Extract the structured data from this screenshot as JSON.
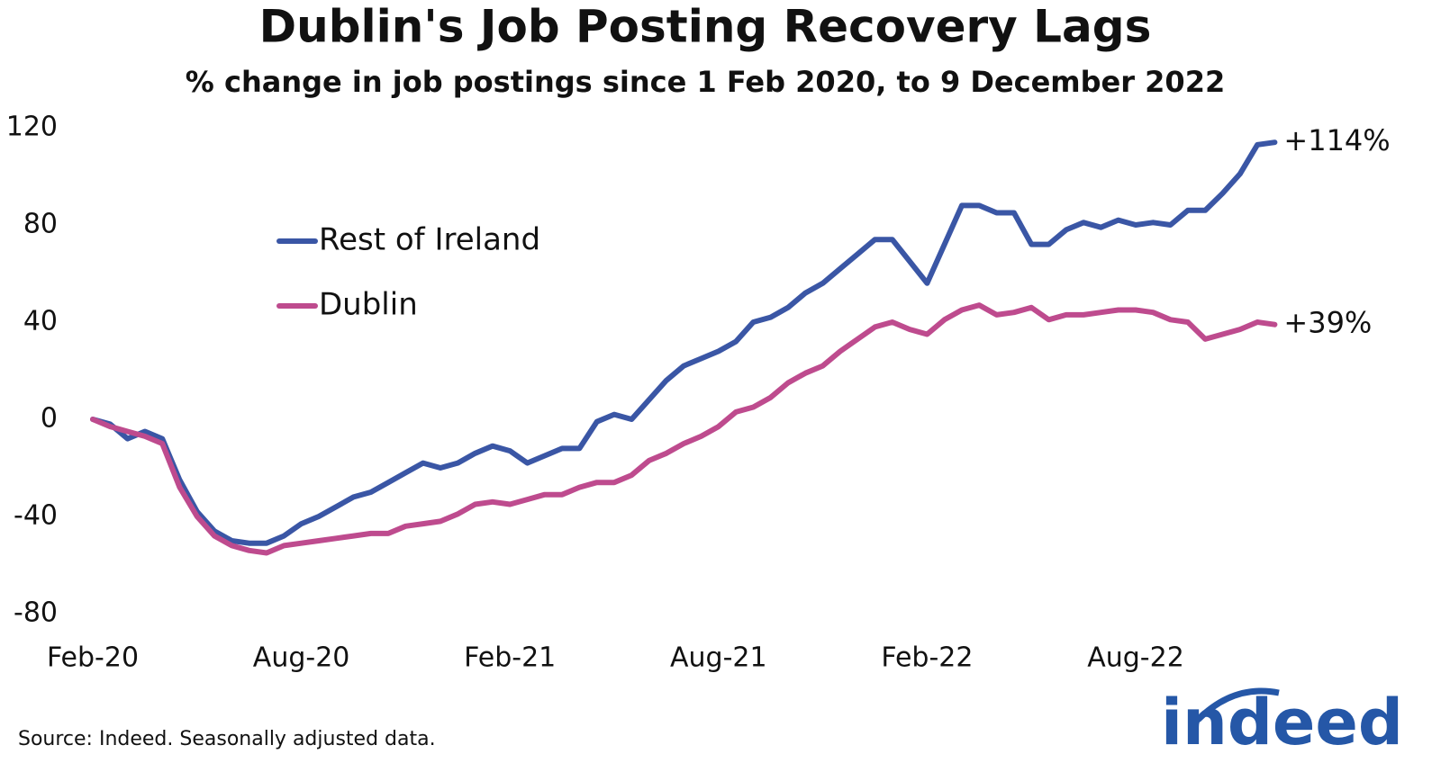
{
  "chart_data": {
    "type": "line",
    "title": "Dublin's Job Posting Recovery Lags",
    "subtitle": "% change in job postings since 1 Feb 2020, to 9 December 2022",
    "source": "Source: Indeed. Seasonally adjusted data.",
    "logo": "indeed",
    "categories": [
      "Feb-20",
      null,
      null,
      null,
      null,
      null,
      null,
      null,
      null,
      null,
      null,
      null,
      "Aug-20",
      null,
      null,
      null,
      null,
      null,
      null,
      null,
      null,
      null,
      null,
      null,
      "Feb-21",
      null,
      null,
      null,
      null,
      null,
      null,
      null,
      null,
      null,
      null,
      null,
      "Aug-21",
      null,
      null,
      null,
      null,
      null,
      null,
      null,
      null,
      null,
      null,
      null,
      "Feb-22",
      null,
      null,
      null,
      null,
      null,
      null,
      null,
      null,
      null,
      null,
      null,
      "Aug-22",
      null,
      null,
      null,
      null,
      null,
      null,
      null,
      null
    ],
    "series": [
      {
        "name": "Rest of Ireland",
        "color": "#3a56a5",
        "end_label": "+114%",
        "values": [
          0,
          -2,
          -8,
          -5,
          -8,
          -25,
          -38,
          -46,
          -50,
          -51,
          -51,
          -48,
          -43,
          -40,
          -36,
          -32,
          -30,
          -26,
          -22,
          -18,
          -20,
          -18,
          -14,
          -11,
          -13,
          -18,
          -15,
          -12,
          -12,
          -1,
          2,
          0,
          8,
          16,
          22,
          25,
          28,
          32,
          40,
          42,
          46,
          52,
          56,
          62,
          68,
          74,
          74,
          65,
          56,
          72,
          88,
          88,
          85,
          85,
          72,
          72,
          78,
          81,
          79,
          82,
          80,
          81,
          80,
          86,
          86,
          93,
          101,
          113,
          114
        ]
      },
      {
        "name": "Dublin",
        "color": "#be4b8e",
        "end_label": "+39%",
        "values": [
          0,
          -3,
          -5,
          -7,
          -10,
          -28,
          -40,
          -48,
          -52,
          -54,
          -55,
          -52,
          -51,
          -50,
          -49,
          -48,
          -47,
          -47,
          -44,
          -43,
          -42,
          -39,
          -35,
          -34,
          -35,
          -33,
          -31,
          -31,
          -28,
          -26,
          -26,
          -23,
          -17,
          -14,
          -10,
          -7,
          -3,
          3,
          5,
          9,
          15,
          19,
          22,
          28,
          33,
          38,
          40,
          37,
          35,
          41,
          45,
          47,
          43,
          44,
          46,
          41,
          43,
          43,
          44,
          45,
          45,
          44,
          41,
          40,
          33,
          35,
          37,
          40,
          39
        ]
      }
    ],
    "ylim": [
      -80,
      120
    ],
    "yticks": [
      120,
      80,
      40,
      0,
      -40,
      -80
    ],
    "grid": false
  }
}
